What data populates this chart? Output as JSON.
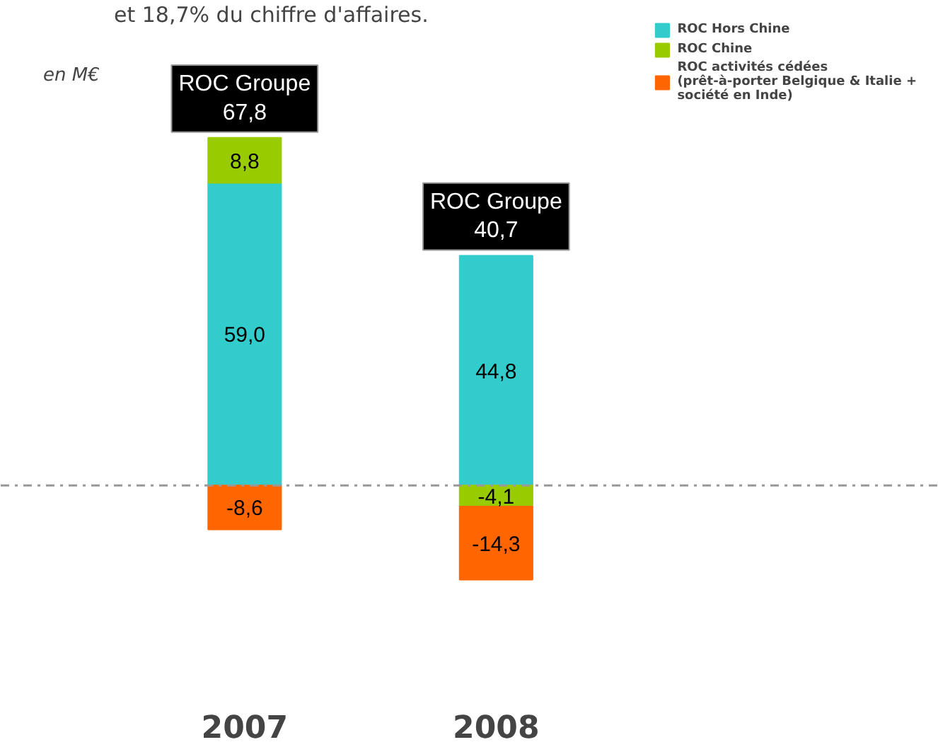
{
  "chart_data": {
    "type": "bar",
    "stacked": true,
    "categories": [
      "2007",
      "2008"
    ],
    "series": [
      {
        "name": "ROC Hors Chine",
        "color": "#33cccc",
        "values": [
          59.0,
          44.8
        ],
        "value_labels": [
          "59,0",
          "44,8"
        ]
      },
      {
        "name": "ROC Chine",
        "color": "#99cc00",
        "values": [
          8.8,
          -4.1
        ],
        "value_labels": [
          "8,8",
          "-4,1"
        ]
      },
      {
        "name": "ROC activités cédées\n(prêt-à-porter Belgique & Italie +\nsociété en Inde)",
        "color": "#ff6600",
        "values": [
          -8.6,
          -14.3
        ],
        "value_labels": [
          "-8,6",
          "-14,3"
        ]
      }
    ],
    "totals": [
      "ROC Groupe\n67,8",
      "ROC Groupe\n40,7"
    ],
    "ref_lines": [
      {
        "axis": "y",
        "value": 0,
        "color": "#999999",
        "line_style": "dashdot"
      }
    ],
    "annotations": [
      "et 18,7% du chiffre d'affaires.",
      "en M€"
    ],
    "legend": "top right"
  }
}
